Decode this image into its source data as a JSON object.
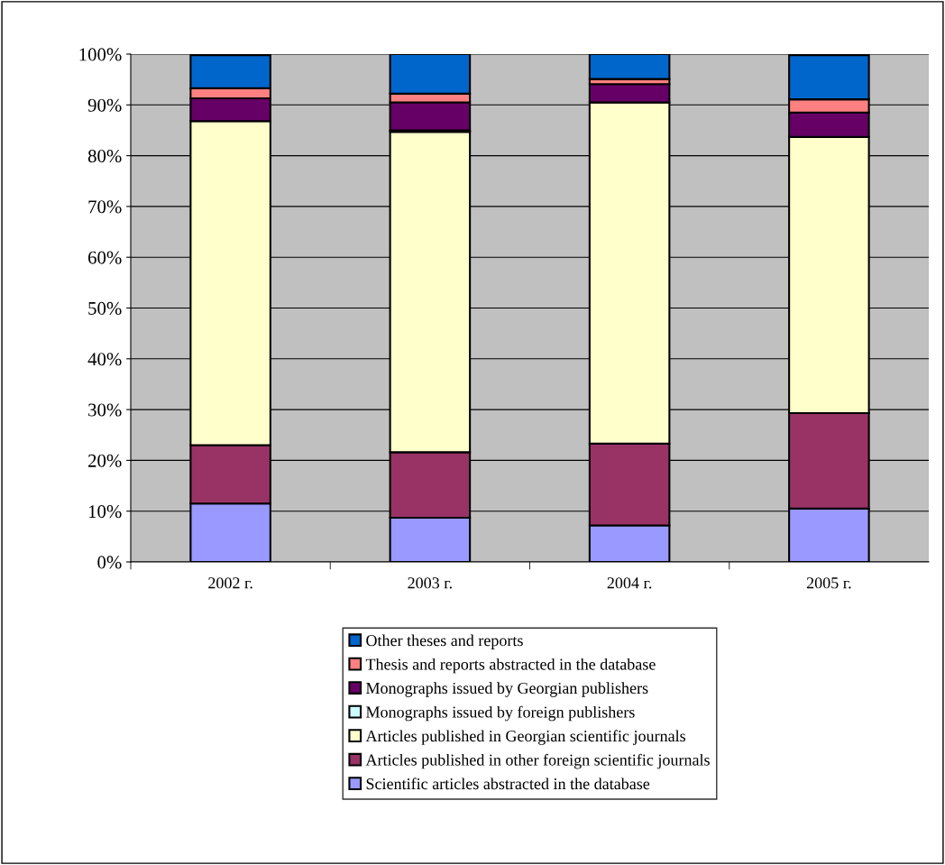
{
  "chart_data": {
    "type": "bar",
    "stacked": true,
    "categories": [
      "2002 г.",
      "2003 г.",
      "2004 г.",
      "2005 г."
    ],
    "series": [
      {
        "name": "Scientific articles abstracted in the database",
        "color": "#9999ff",
        "values": [
          11.5,
          8.7,
          7.2,
          10.5
        ]
      },
      {
        "name": "Articles published in other foreign scientific journals",
        "color": "#993366",
        "values": [
          11.5,
          12.9,
          16.1,
          18.8
        ]
      },
      {
        "name": "Articles published in Georgian scientific journals",
        "color": "#ffffcc",
        "values": [
          63.8,
          63.1,
          67.2,
          54.4
        ]
      },
      {
        "name": "Monographs issued by foreign publishers",
        "color": "#ccffff",
        "values": [
          null,
          0.3,
          0,
          null
        ]
      },
      {
        "name": "Monographs issued by Georgian publishers",
        "color": "#660066",
        "values": [
          4.5,
          5.5,
          3.6,
          4.8
        ]
      },
      {
        "name": "Thesis and reports abstracted in the database",
        "color": "#ff8080",
        "values": [
          2.0,
          1.7,
          1.0,
          2.6
        ]
      },
      {
        "name": "Other theses and reports",
        "color": "#0066cc",
        "values": [
          6.5,
          7.8,
          4.9,
          8.7
        ]
      }
    ],
    "ylim": [
      0,
      100
    ],
    "yticks": [
      {
        "value": 0,
        "label": "0%"
      },
      {
        "value": 10,
        "label": "10%"
      },
      {
        "value": 20,
        "label": "20%"
      },
      {
        "value": 30,
        "label": "30%"
      },
      {
        "value": 40,
        "label": "40%"
      },
      {
        "value": 50,
        "label": "50%"
      },
      {
        "value": 60,
        "label": "60%"
      },
      {
        "value": 70,
        "label": "70%"
      },
      {
        "value": 80,
        "label": "80%"
      },
      {
        "value": 90,
        "label": "90%"
      },
      {
        "value": 100,
        "label": "100%"
      }
    ],
    "grid": "y",
    "legend": "bottom"
  }
}
